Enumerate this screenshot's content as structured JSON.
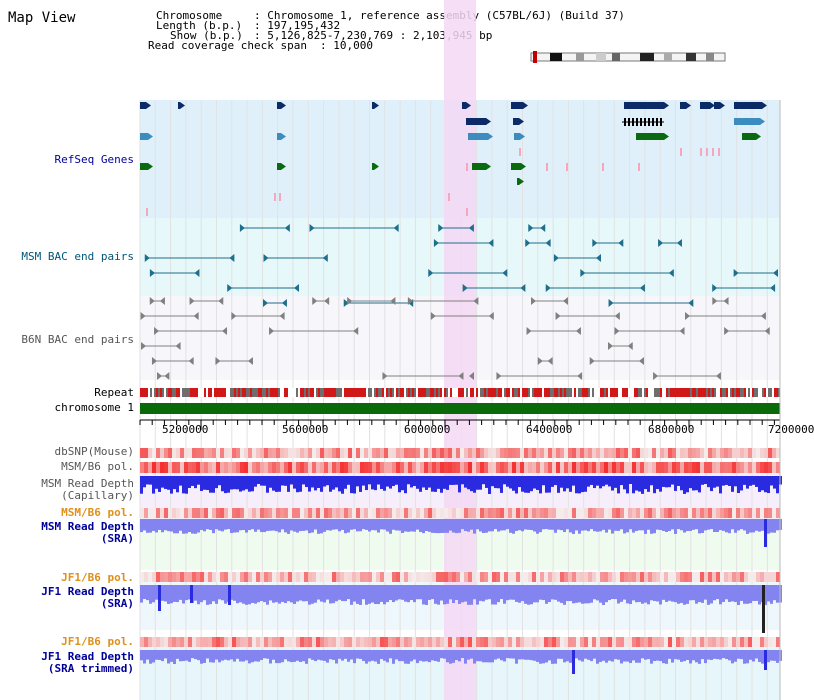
{
  "app": {
    "title": "Map View"
  },
  "header": {
    "chromosome_key": "Chromosome",
    "chromosome_val": ": Chromosome 1, reference assembly (C57BL/6J) (Build 37)",
    "length_key": "Length (b.p.)",
    "length_val": ": 197,195,432",
    "show_key": "Show (b.p.)",
    "show_val": ": 5,126,825-7,230,769 : 2,103,945 bp",
    "coverage_key": "Read coverage check span",
    "coverage_val": ": 10,000"
  },
  "tracks": {
    "refseq": "RefSeq Genes",
    "msm_bac": "MSM BAC end pairs",
    "b6n_bac": "B6N BAC end pairs",
    "repeat": "Repeat",
    "chromosome": "chromosome 1",
    "dbsnp": "dbSNP(Mouse)",
    "msm_b6_pol_1": "MSM/B6 pol.",
    "msm_read_depth_cap_1": "MSM Read Depth",
    "msm_read_depth_cap_2": "(Capillary)",
    "msm_b6_pol_2": "MSM/B6 pol.",
    "msm_read_depth_sra_1": "MSM Read Depth",
    "msm_read_depth_sra_2": "(SRA)",
    "jf1_b6_pol_1": "JF1/B6 pol.",
    "jf1_read_depth_sra_1": "JF1 Read Depth",
    "jf1_read_depth_sra_2": "(SRA)",
    "jf1_b6_pol_2": "JF1/B6 pol.",
    "jf1_read_depth_trim_1": "JF1 Read Depth",
    "jf1_read_depth_trim_2": "(SRA trimmed)"
  },
  "axis": {
    "ticks": [
      "5200000",
      "5600000",
      "6000000",
      "6400000",
      "6800000",
      "7200000"
    ]
  },
  "colors": {
    "refseq_bg": "#dff0fa",
    "msm_bg": "#e6f8fa",
    "b6n_bg": "#f7f7fb",
    "highlight": "#f5d8f5",
    "gene_dark": "#0b2a66",
    "gene_blue": "#3d8cc0",
    "gene_green": "#0a6a10",
    "msm_bac": "#1e6e8c",
    "b6n_bac": "#808080",
    "repeat_red": "#d01818",
    "repeat_gray": "#6e6e6e",
    "chromosome": "#0a6a0a",
    "depth_dark": "#2a2ae0",
    "depth_light": "#8484f0",
    "label_blue": "#000099",
    "label_orange": "#e0901a",
    "label_teal": "#005577",
    "label_gray": "#555555"
  }
}
